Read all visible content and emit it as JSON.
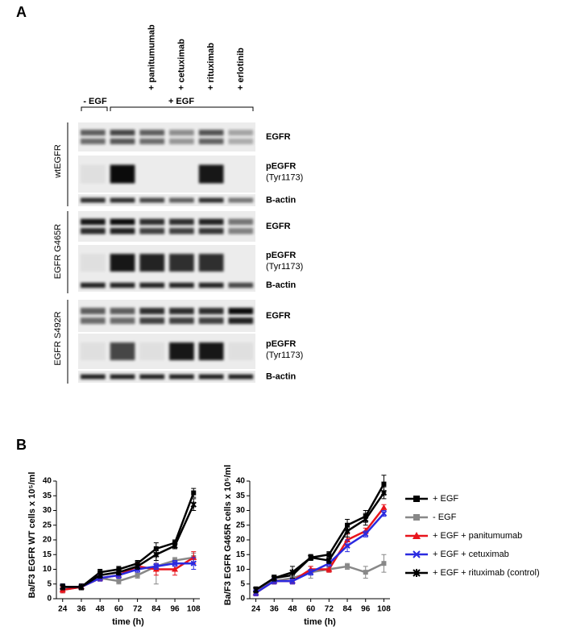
{
  "panel_a": {
    "label": "A",
    "lanes": [
      "- EGF",
      "+ EGF",
      "+ panitumumab",
      "+ cetuximab",
      "+ rituximab",
      "+ erlotinib"
    ],
    "groups": [
      {
        "label": "wtEGFR",
        "rows": [
          {
            "label": "EGFR"
          },
          {
            "label": "pEGFR",
            "sublabel": "(Tyr1173)"
          },
          {
            "label": "B-actin"
          }
        ]
      },
      {
        "label": "EGFR G465R",
        "rows": [
          {
            "label": "EGFR"
          },
          {
            "label": "pEGFR",
            "sublabel": "(Tyr1173)"
          },
          {
            "label": "B-actin"
          }
        ]
      },
      {
        "label": "EGFR S492R",
        "rows": [
          {
            "label": "EGFR"
          },
          {
            "label": "pEGFR",
            "sublabel": "(Tyr1173)"
          },
          {
            "label": "B-actin"
          }
        ]
      }
    ]
  },
  "panel_b": {
    "label": "B"
  },
  "chart_data": [
    {
      "type": "line",
      "x_label": "time (h)",
      "y_label": "Ba/F3 EGFR WT cells x 10⁵/ml",
      "x": [
        24,
        36,
        48,
        60,
        72,
        84,
        96,
        108
      ],
      "xlim": [
        20,
        112
      ],
      "xticks": [
        24,
        36,
        48,
        60,
        72,
        84,
        96,
        108
      ],
      "ylim": [
        0,
        40
      ],
      "yticks": [
        0,
        5,
        10,
        15,
        20,
        25,
        30,
        35,
        40
      ],
      "series": [
        {
          "color": "#000000",
          "marker": "square",
          "values": [
            4,
            4,
            9,
            10,
            12,
            17,
            19,
            36
          ],
          "errors": [
            1,
            1,
            1,
            1,
            1,
            2,
            1,
            1.5
          ]
        },
        {
          "color": "#888888",
          "marker": "square",
          "values": [
            3,
            4,
            7,
            6,
            8,
            11,
            13,
            14
          ],
          "errors": [
            1,
            1,
            1,
            1,
            1,
            6,
            1,
            1.5
          ]
        },
        {
          "color": "#e8141c",
          "marker": "triangle",
          "values": [
            3,
            4,
            7,
            8,
            11,
            10,
            10,
            14
          ],
          "errors": [
            1,
            1,
            1,
            1,
            1,
            2,
            2,
            2
          ]
        },
        {
          "color": "#2a2ae0",
          "marker": "x",
          "values": [
            4,
            4,
            7,
            8,
            10,
            11,
            12,
            12
          ],
          "errors": [
            1,
            1,
            1,
            1,
            1,
            1,
            1,
            2
          ]
        },
        {
          "color": "#000000",
          "marker": "star",
          "values": [
            4,
            4,
            8,
            9,
            11,
            15,
            18,
            32
          ],
          "errors": [
            1,
            1,
            1,
            1,
            1,
            2,
            1,
            2
          ]
        }
      ]
    },
    {
      "type": "line",
      "x_label": "time (h)",
      "y_label": "Ba/F3 EGFR G465R cells x 10⁵/ml",
      "x": [
        24,
        36,
        48,
        60,
        72,
        84,
        96,
        108
      ],
      "xlim": [
        20,
        112
      ],
      "xticks": [
        24,
        36,
        48,
        60,
        72,
        84,
        96,
        108
      ],
      "ylim": [
        0,
        40
      ],
      "yticks": [
        0,
        5,
        10,
        15,
        20,
        25,
        30,
        35,
        40
      ],
      "series": [
        {
          "name": "+ EGF",
          "color": "#000000",
          "marker": "square",
          "values": [
            3,
            7,
            8,
            14,
            15,
            25,
            28,
            39
          ],
          "errors": [
            1,
            1,
            1,
            1,
            1,
            2,
            2,
            3
          ]
        },
        {
          "name": "- EGF",
          "color": "#888888",
          "marker": "square",
          "values": [
            3,
            6,
            7,
            9,
            10,
            11,
            9,
            12
          ],
          "errors": [
            1,
            1,
            1,
            2,
            1,
            1,
            2,
            3
          ]
        },
        {
          "name": "+ EGF + panitumumab",
          "color": "#e8141c",
          "marker": "triangle",
          "values": [
            2,
            6,
            6,
            10,
            10,
            20,
            23,
            31
          ],
          "errors": [
            1,
            1,
            1,
            1,
            1,
            2,
            1,
            1
          ]
        },
        {
          "name": "+ EGF + cetuximab",
          "color": "#2a2ae0",
          "marker": "x",
          "values": [
            2,
            6,
            6,
            9,
            12,
            18,
            22,
            29
          ],
          "errors": [
            1,
            1,
            1,
            1,
            1,
            2,
            1,
            1
          ]
        },
        {
          "name": "+ EGF + rituximab (control)",
          "color": "#000000",
          "marker": "star",
          "values": [
            3,
            7,
            9,
            14,
            13,
            23,
            27,
            36
          ],
          "errors": [
            1,
            1,
            2,
            1,
            1,
            2,
            2,
            2
          ]
        }
      ]
    }
  ]
}
